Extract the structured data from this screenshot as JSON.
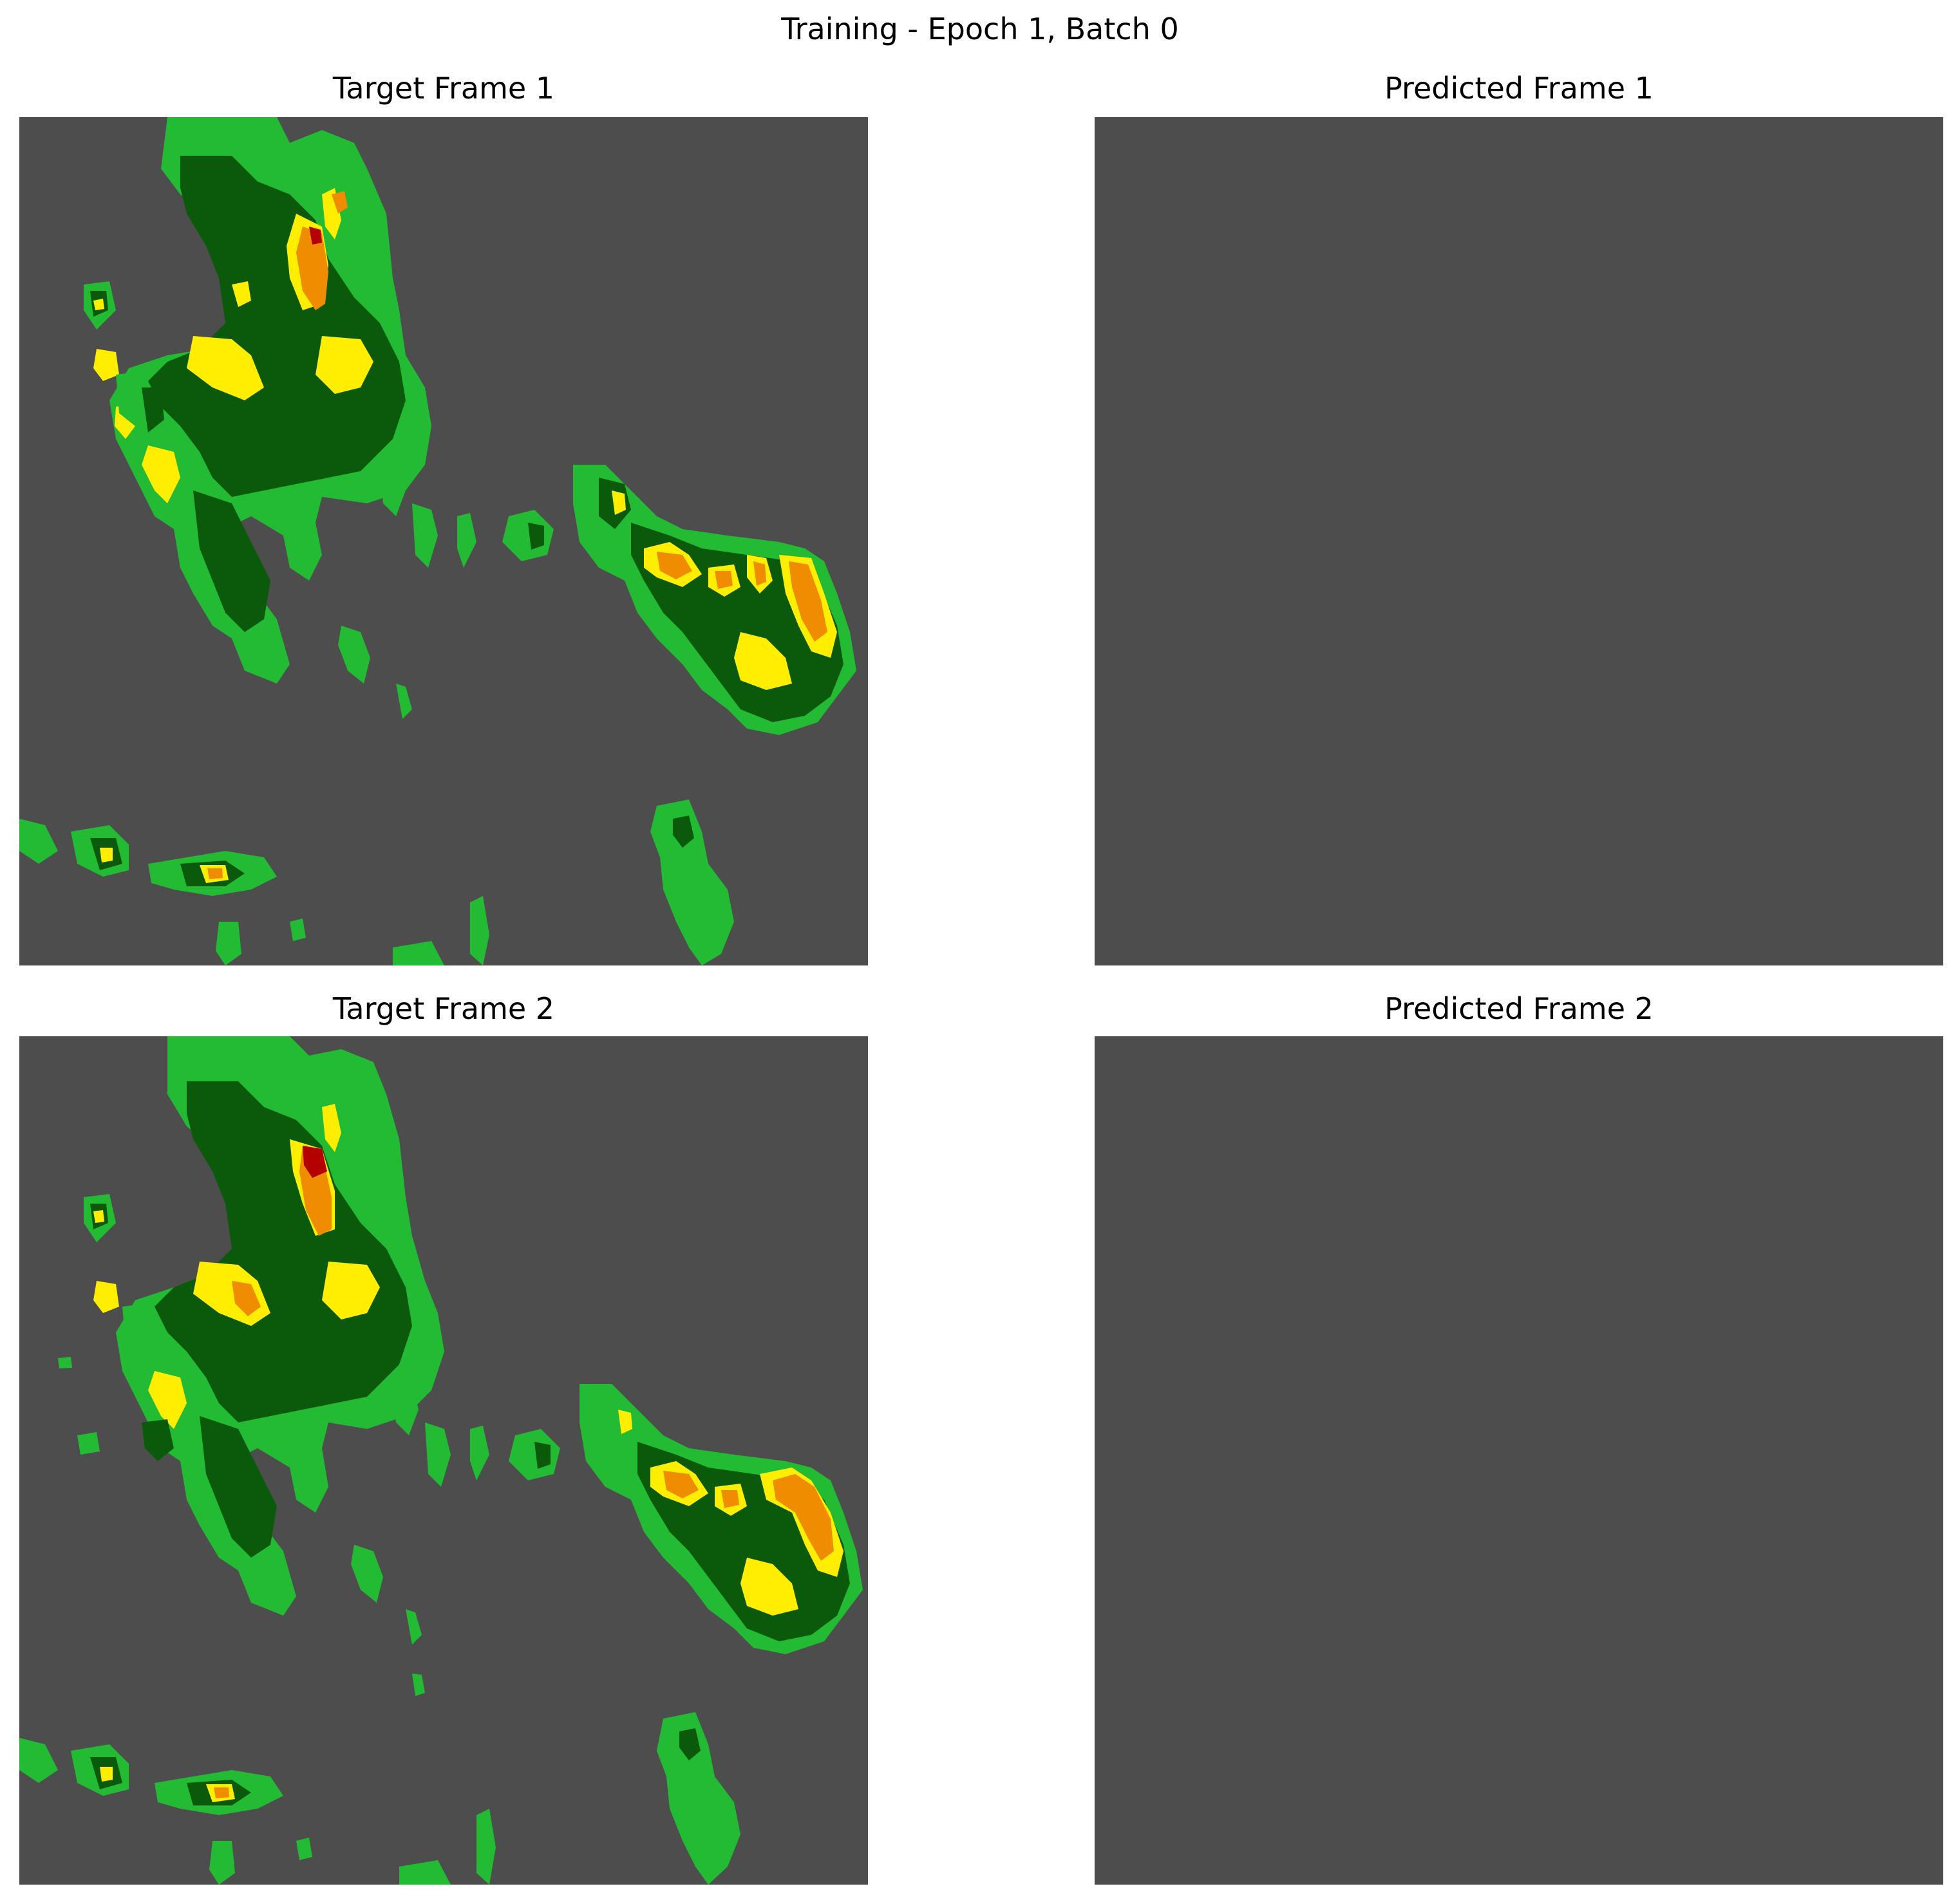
{
  "figure": {
    "suptitle": "Training - Epoch 1, Batch 0"
  },
  "colors": {
    "background": "#4d4d4d",
    "light_green": "#22bb33",
    "dark_green": "#0b5a0b",
    "yellow": "#ffee00",
    "orange": "#f08c00",
    "dark_red": "#b40000"
  },
  "chart_data": [
    {
      "type": "heatmap",
      "title": "Target Frame 1",
      "axes": "off",
      "grid": false,
      "content": "radar reflectivity field with scattered storm cells"
    },
    {
      "type": "heatmap",
      "title": "Predicted Frame 1",
      "axes": "off",
      "grid": false,
      "content": "uniform background, no echoes"
    },
    {
      "type": "heatmap",
      "title": "Target Frame 2",
      "axes": "off",
      "grid": false,
      "content": "radar reflectivity field with scattered storm cells"
    },
    {
      "type": "heatmap",
      "title": "Predicted Frame 2",
      "axes": "off",
      "grid": false,
      "content": "uniform background, no echoes"
    }
  ]
}
